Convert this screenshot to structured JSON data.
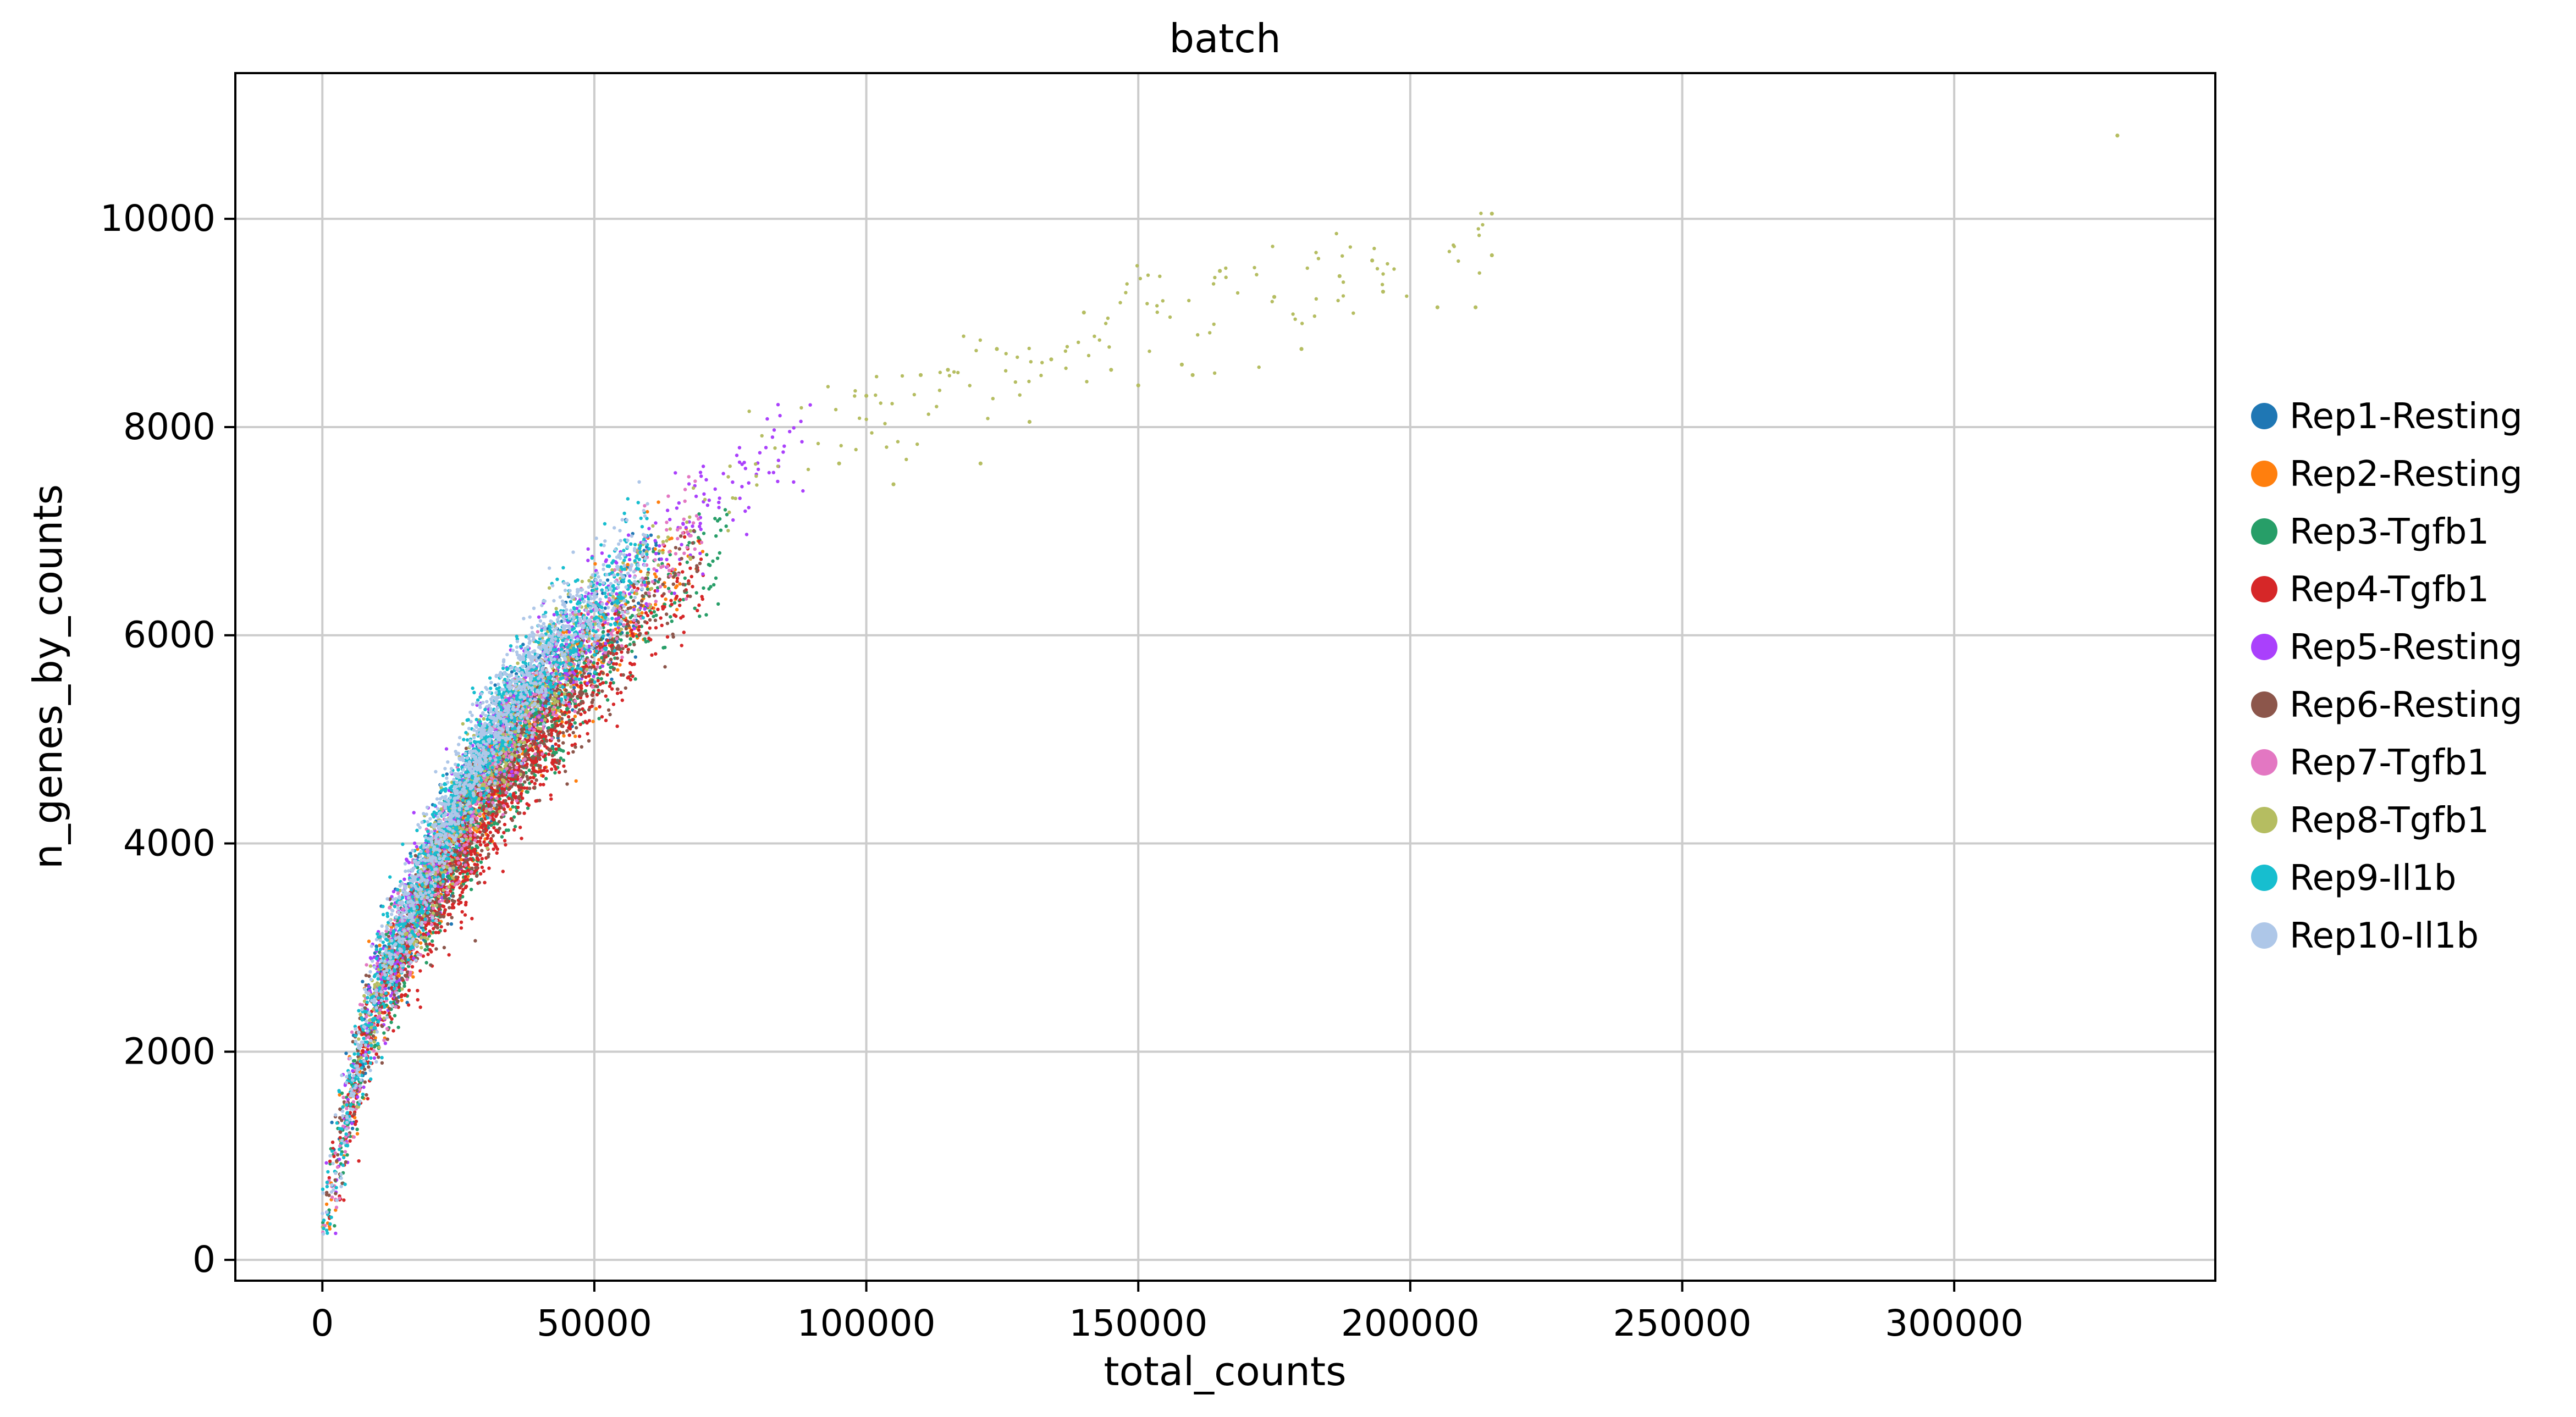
{
  "chart_data": {
    "type": "scatter",
    "title": "batch",
    "xlabel": "total_counts",
    "ylabel": "n_genes_by_counts",
    "xlim": [
      -16000,
      348000
    ],
    "ylim": [
      -200,
      11400
    ],
    "xticks": [
      0,
      50000,
      100000,
      150000,
      200000,
      250000,
      300000
    ],
    "yticks": [
      0,
      2000,
      4000,
      6000,
      8000,
      10000
    ],
    "xtick_labels": [
      "0",
      "50000",
      "100000",
      "150000",
      "200000",
      "250000",
      "300000"
    ],
    "ytick_labels": [
      "0",
      "2000",
      "4000",
      "6000",
      "8000",
      "10000"
    ],
    "grid": true,
    "legend_position": "right, outside plot",
    "trend": {
      "description_points": [
        [
          0,
          300
        ],
        [
          5000,
          1500
        ],
        [
          10000,
          2600
        ],
        [
          20000,
          3700
        ],
        [
          30000,
          4700
        ],
        [
          40000,
          5450
        ],
        [
          50000,
          6000
        ],
        [
          60000,
          6600
        ],
        [
          75000,
          7300
        ],
        [
          100000,
          8100
        ],
        [
          150000,
          9000
        ],
        [
          200000,
          9500
        ]
      ]
    },
    "series": [
      {
        "name": "Rep1-Resting",
        "color": "#1f77b4",
        "x_range": [
          0,
          62000
        ],
        "density": 0.08
      },
      {
        "name": "Rep2-Resting",
        "color": "#ff7f0e",
        "x_range": [
          0,
          70000
        ],
        "density": 0.08
      },
      {
        "name": "Rep3-Tgfb1",
        "color": "#279e68",
        "x_range": [
          0,
          75000
        ],
        "density": 0.1
      },
      {
        "name": "Rep4-Tgfb1",
        "color": "#d62728",
        "x_range": [
          0,
          70000
        ],
        "density": 0.12
      },
      {
        "name": "Rep5-Resting",
        "color": "#aa40fc",
        "x_range": [
          0,
          90000
        ],
        "density": 0.1
      },
      {
        "name": "Rep6-Resting",
        "color": "#8c564b",
        "x_range": [
          0,
          70000
        ],
        "density": 0.08
      },
      {
        "name": "Rep7-Tgfb1",
        "color": "#e377c2",
        "x_range": [
          0,
          70000
        ],
        "density": 0.08
      },
      {
        "name": "Rep8-Tgfb1",
        "color": "#b5bd61",
        "x_range": [
          0,
          215000
        ],
        "density": 0.08
      },
      {
        "name": "Rep9-Il1b",
        "color": "#17becf",
        "x_range": [
          0,
          60000
        ],
        "density": 0.14
      },
      {
        "name": "Rep10-Il1b",
        "color": "#aec7e8",
        "x_range": [
          0,
          60000
        ],
        "density": 0.14
      }
    ],
    "outliers": [
      {
        "series": "Rep8-Tgfb1",
        "x": 330000,
        "y": 10800
      },
      {
        "series": "Rep8-Tgfb1",
        "x": 215000,
        "y": 10050
      },
      {
        "series": "Rep8-Tgfb1",
        "x": 215000,
        "y": 9650
      },
      {
        "series": "Rep8-Tgfb1",
        "x": 193000,
        "y": 9600
      },
      {
        "series": "Rep8-Tgfb1",
        "x": 212000,
        "y": 9150
      },
      {
        "series": "Rep8-Tgfb1",
        "x": 205000,
        "y": 9150
      },
      {
        "series": "Rep8-Tgfb1",
        "x": 195000,
        "y": 9300
      },
      {
        "series": "Rep8-Tgfb1",
        "x": 187000,
        "y": 9450
      },
      {
        "series": "Rep8-Tgfb1",
        "x": 180000,
        "y": 8750
      },
      {
        "series": "Rep8-Tgfb1",
        "x": 175000,
        "y": 9250
      },
      {
        "series": "Rep8-Tgfb1",
        "x": 165000,
        "y": 9500
      },
      {
        "series": "Rep8-Tgfb1",
        "x": 160000,
        "y": 8500
      },
      {
        "series": "Rep8-Tgfb1",
        "x": 158000,
        "y": 8600
      },
      {
        "series": "Rep8-Tgfb1",
        "x": 150000,
        "y": 8400
      },
      {
        "series": "Rep8-Tgfb1",
        "x": 145000,
        "y": 8550
      },
      {
        "series": "Rep8-Tgfb1",
        "x": 140000,
        "y": 9100
      },
      {
        "series": "Rep8-Tgfb1",
        "x": 134000,
        "y": 8650
      },
      {
        "series": "Rep8-Tgfb1",
        "x": 130000,
        "y": 8050
      },
      {
        "series": "Rep8-Tgfb1",
        "x": 124000,
        "y": 8750
      },
      {
        "series": "Rep8-Tgfb1",
        "x": 121000,
        "y": 7650
      },
      {
        "series": "Rep8-Tgfb1",
        "x": 115000,
        "y": 8550
      },
      {
        "series": "Rep8-Tgfb1",
        "x": 110000,
        "y": 8500
      },
      {
        "series": "Rep8-Tgfb1",
        "x": 105000,
        "y": 7450
      },
      {
        "series": "Rep8-Tgfb1",
        "x": 100000,
        "y": 8300
      },
      {
        "series": "Rep8-Tgfb1",
        "x": 95000,
        "y": 7650
      }
    ]
  }
}
